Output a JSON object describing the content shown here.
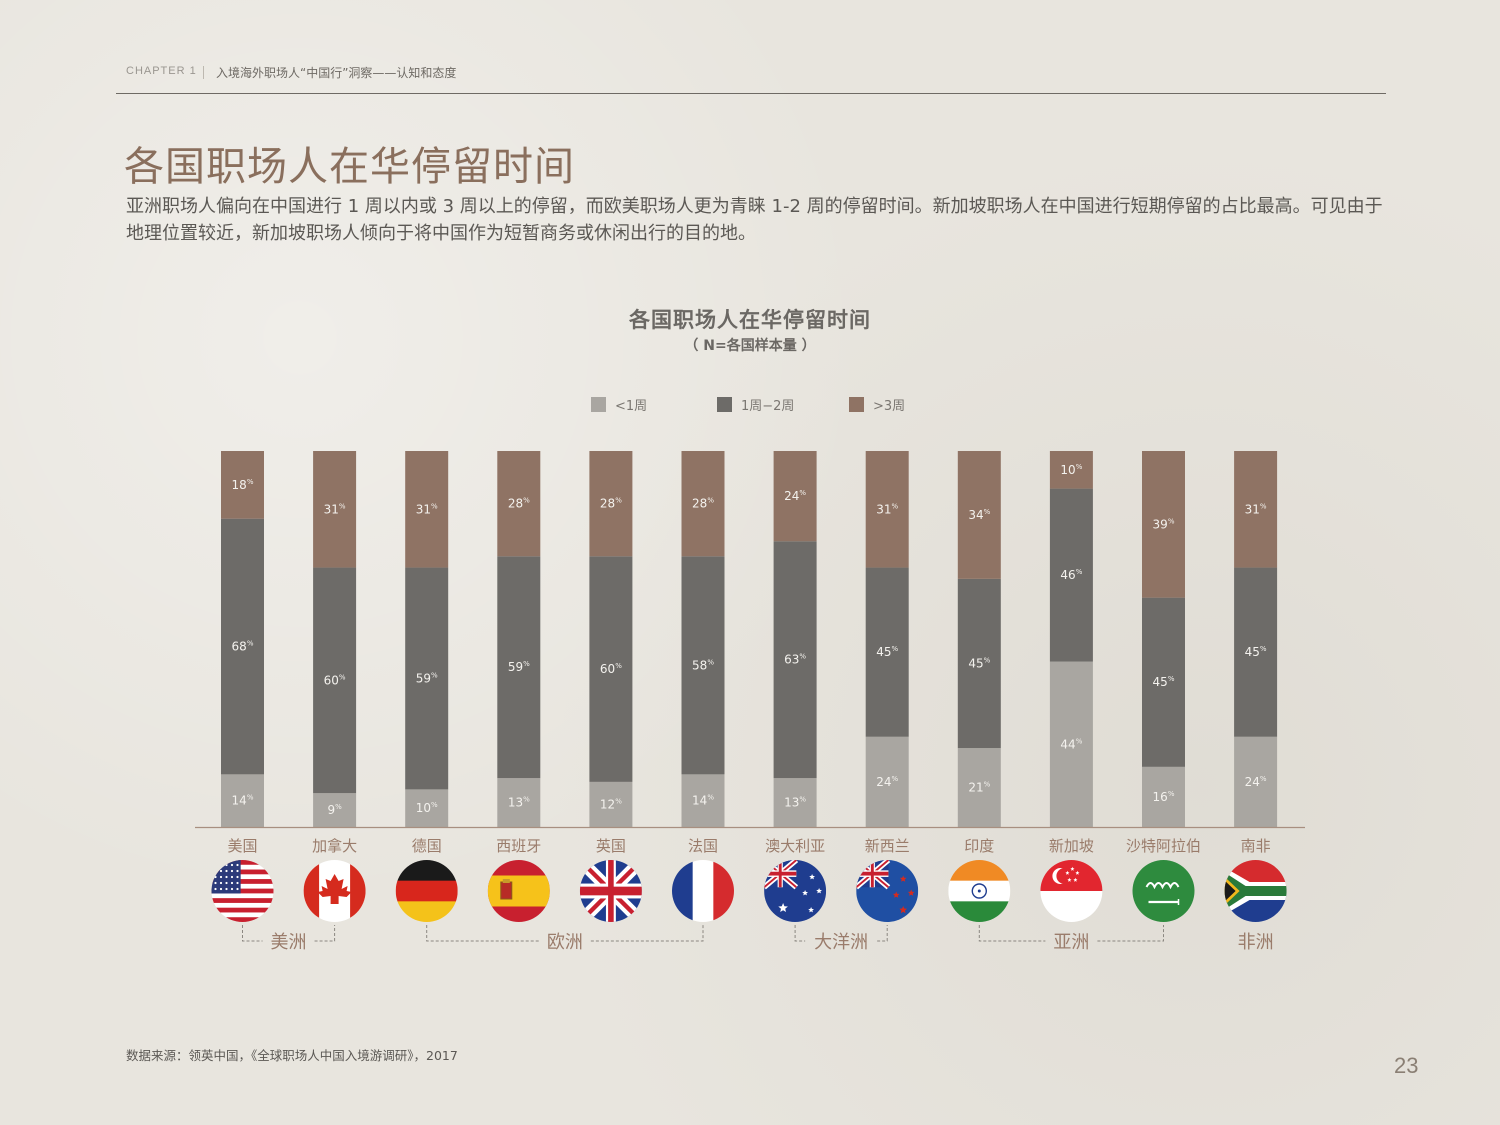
{
  "header": {
    "chapter": "CHAPTER 1",
    "section_title": "入境海外职场人“中国行”洞察——认知和态度"
  },
  "page_title": "各国职场人在华停留时间",
  "intro_text": "亚洲职场人偏向在中国进行 1 周以内或 3 周以上的停留，而欧美职场人更为青睐 1-2 周的停留时间。新加坡职场人在中国进行短期停留的占比最高。可见由于地理位置较近，新加坡职场人倾向于将中国作为短暂商务或休闲出行的目的地。",
  "source": "数据来源：领英中国，《全球职场人中国入境游调研》，2017",
  "page_number": "23",
  "colors": {
    "lt1w": "#a9a6a1",
    "w1to2": "#6d6b68",
    "gt3w": "#8f7364",
    "label_on_light": "#f4f2ee",
    "region_text": "#9a7c6b",
    "dash": "#8b8781",
    "axis": "#a88f80"
  },
  "chart_data": {
    "type": "bar",
    "stacked": true,
    "title": "各国职场人在华停留时间",
    "subtitle": "（ N=各国样本量 ）",
    "legend": {
      "position": "top-center"
    },
    "value_suffix": "%",
    "categories": [
      "美国",
      "加拿大",
      "德国",
      "西班牙",
      "英国",
      "法国",
      "澳大利亚",
      "新西兰",
      "印度",
      "新加坡",
      "沙特阿拉伯",
      "南非"
    ],
    "series": [
      {
        "name": "<1周",
        "color_key": "lt1w",
        "values": [
          14,
          9,
          10,
          13,
          12,
          14,
          13,
          24,
          21,
          44,
          16,
          24
        ]
      },
      {
        "name": "1周−2周",
        "color_key": "w1to2",
        "values": [
          68,
          60,
          59,
          59,
          60,
          58,
          63,
          45,
          45,
          46,
          45,
          45
        ]
      },
      {
        "name": ">3周",
        "color_key": "gt3w",
        "values": [
          18,
          31,
          31,
          28,
          28,
          28,
          24,
          31,
          34,
          10,
          39,
          31
        ]
      }
    ],
    "ylim": [
      0,
      100
    ]
  },
  "flags": [
    "us-flag-icon",
    "canada-flag-icon",
    "germany-flag-icon",
    "spain-flag-icon",
    "uk-flag-icon",
    "france-flag-icon",
    "australia-flag-icon",
    "new-zealand-flag-icon",
    "india-flag-icon",
    "singapore-flag-icon",
    "saudi-arabia-flag-icon",
    "south-africa-flag-icon"
  ],
  "regions": [
    {
      "label": "美洲",
      "from": 0,
      "to": 1
    },
    {
      "label": "欧洲",
      "from": 2,
      "to": 5
    },
    {
      "label": "大洋洲",
      "from": 6,
      "to": 7
    },
    {
      "label": "亚洲",
      "from": 8,
      "to": 10
    },
    {
      "label": "非洲",
      "from": 11,
      "to": 11
    }
  ]
}
